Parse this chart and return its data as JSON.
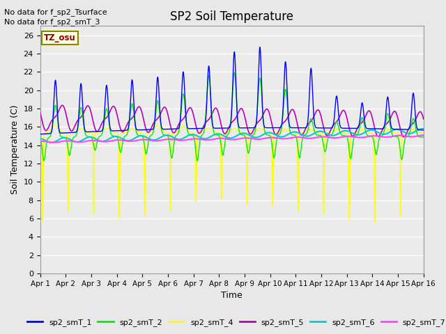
{
  "title": "SP2 Soil Temperature",
  "xlabel": "Time",
  "ylabel": "Soil Temperature (C)",
  "ylim": [
    0,
    27
  ],
  "yticks": [
    0,
    2,
    4,
    6,
    8,
    10,
    12,
    14,
    16,
    18,
    20,
    22,
    24,
    26
  ],
  "note1": "No data for f_sp2_Tsurface",
  "note2": "No data for f_sp2_smT_3",
  "tz_label": "TZ_osu",
  "colors": {
    "sp2_smT_1": "#0000FF",
    "sp2_smT_2": "#00EE00",
    "sp2_smT_4": "#FFFF00",
    "sp2_smT_5": "#BB00BB",
    "sp2_smT_6": "#00CCCC",
    "sp2_smT_7": "#FF44FF"
  },
  "bg_color": "#E8E8E8",
  "plot_bg": "#EBEBEB"
}
